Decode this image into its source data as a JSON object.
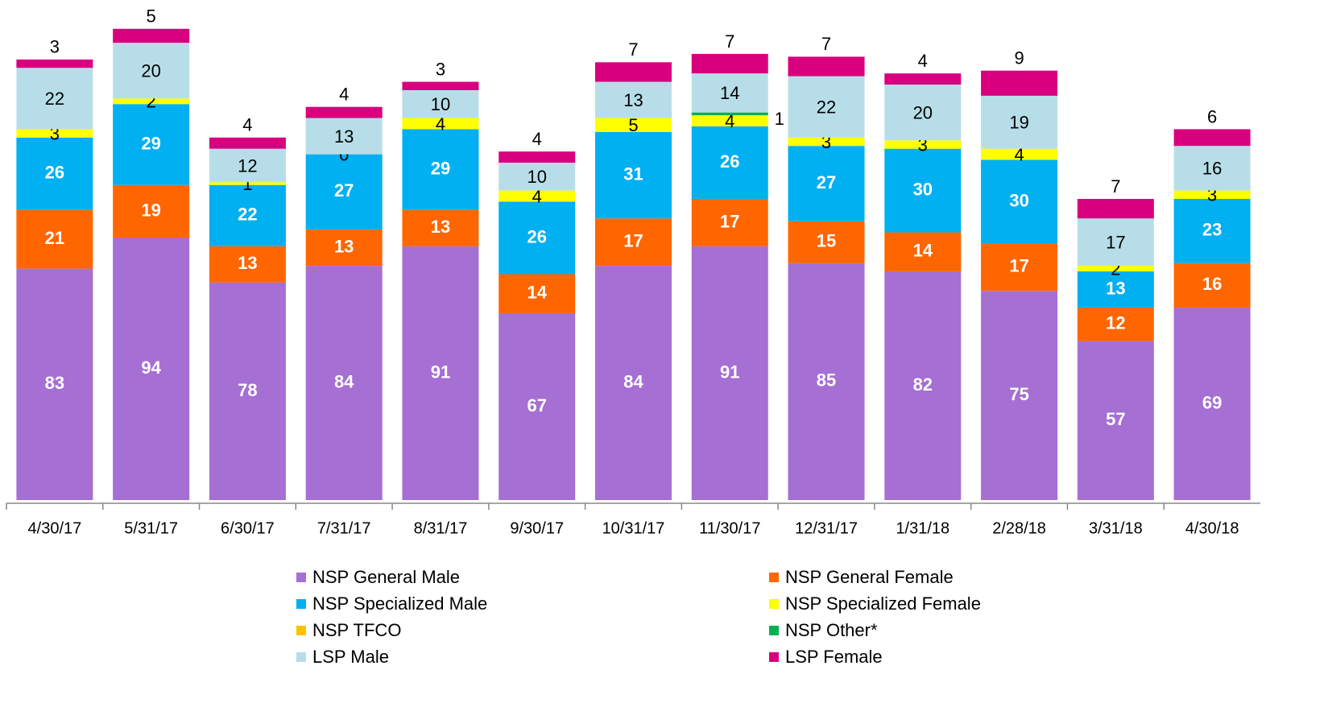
{
  "chart_data": {
    "type": "stacked_bar",
    "categories": [
      "4/30/17",
      "5/31/17",
      "6/30/17",
      "7/31/17",
      "8/31/17",
      "9/30/17",
      "10/31/17",
      "11/30/17",
      "12/31/17",
      "1/31/18",
      "2/28/18",
      "3/31/18",
      "4/30/18"
    ],
    "series": [
      {
        "name": "NSP General Male",
        "color": "#a66fd3",
        "values": [
          83,
          94,
          78,
          84,
          91,
          67,
          84,
          91,
          85,
          82,
          75,
          57,
          69
        ]
      },
      {
        "name": "NSP General Female",
        "color": "#ff6600",
        "values": [
          21,
          19,
          13,
          13,
          13,
          14,
          17,
          17,
          15,
          14,
          17,
          12,
          16
        ]
      },
      {
        "name": "NSP Specialized Male",
        "color": "#00b0f0",
        "values": [
          26,
          29,
          22,
          27,
          29,
          26,
          31,
          26,
          27,
          30,
          30,
          13,
          23
        ]
      },
      {
        "name": "NSP Specialized Female",
        "color": "#ffff00",
        "values": [
          3,
          2,
          1,
          0,
          4,
          4,
          5,
          4,
          3,
          3,
          4,
          2,
          3
        ]
      },
      {
        "name": "NSP TFCO",
        "color": "#ffc000",
        "values": [
          null,
          null,
          null,
          null,
          null,
          null,
          null,
          null,
          null,
          null,
          null,
          null,
          null
        ]
      },
      {
        "name": "NSP Other*",
        "color": "#00b050",
        "values": [
          null,
          null,
          null,
          null,
          null,
          null,
          null,
          1,
          null,
          null,
          null,
          null,
          null
        ]
      },
      {
        "name": "LSP  Male",
        "color": "#b7dee8",
        "values": [
          22,
          20,
          12,
          13,
          10,
          10,
          13,
          14,
          22,
          20,
          19,
          17,
          16
        ]
      },
      {
        "name": "LSP Female",
        "color": "#d8007f",
        "values": [
          3,
          5,
          4,
          4,
          3,
          4,
          7,
          7,
          7,
          4,
          9,
          7,
          6
        ]
      }
    ],
    "ylim": [
      0,
      175
    ]
  }
}
